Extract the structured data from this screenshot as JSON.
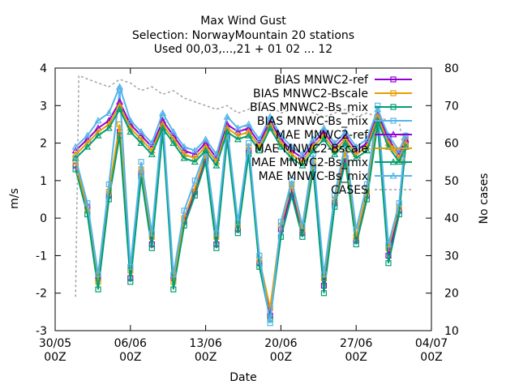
{
  "chart_data": {
    "type": "line",
    "title_lines": [
      "Max Wind Gust",
      "Selection: NorwayMountain     20 stations",
      "Used 00,03,...,21 + 01 02 ... 12"
    ],
    "xlabel": "Date",
    "ylabel": "m/s",
    "y2label": "No cases",
    "ylim": [
      -3,
      4
    ],
    "y2lim": [
      10,
      80
    ],
    "xlim": [
      0,
      35
    ],
    "x_unit": "days since 30/05 00Z",
    "yticks": [
      "-3",
      "-2",
      "-1",
      "0",
      "1",
      "2",
      "3",
      "4"
    ],
    "y2ticks": [
      "10",
      "20",
      "30",
      "40",
      "50",
      "60",
      "70",
      "80"
    ],
    "xticks": [
      {
        "l1": "30/05",
        "l2": "00Z"
      },
      {
        "l1": "06/06",
        "l2": "00Z"
      },
      {
        "l1": "13/06",
        "l2": "00Z"
      },
      {
        "l1": "20/06",
        "l2": "00Z"
      },
      {
        "l1": "27/06",
        "l2": "00Z"
      },
      {
        "l1": "04/07",
        "l2": "00Z"
      }
    ],
    "grid": false,
    "legend_position": "top-right",
    "series": [
      {
        "name": "BIAS MNWC2-ref",
        "color": "#9400d3",
        "kind": "bias",
        "marker": "square",
        "values": [
          [
            1.9,
            1.4
          ],
          [
            3.0,
            0.3
          ],
          [
            4.0,
            -1.6
          ],
          [
            5.0,
            0.6
          ],
          [
            6.0,
            2.3
          ],
          [
            7.0,
            -1.6
          ],
          [
            8.0,
            1.2
          ],
          [
            9.0,
            -0.7
          ],
          [
            10.0,
            2.4
          ],
          [
            11.0,
            -1.6
          ],
          [
            12.0,
            -0.1
          ],
          [
            13.0,
            0.7
          ],
          [
            14.0,
            1.6
          ],
          [
            15.0,
            -0.7
          ],
          [
            16.0,
            2.2
          ],
          [
            17.0,
            -0.3
          ],
          [
            18.0,
            1.8
          ],
          [
            19.0,
            -1.2
          ],
          [
            20.0,
            -2.6
          ],
          [
            21.0,
            -0.3
          ],
          [
            22.0,
            0.7
          ],
          [
            23.0,
            -0.4
          ],
          [
            24.0,
            1.4
          ],
          [
            25.0,
            -1.8
          ],
          [
            26.0,
            0.4
          ],
          [
            27.0,
            1.6
          ],
          [
            28.0,
            -0.6
          ],
          [
            29.0,
            0.6
          ],
          [
            30.0,
            2.6
          ],
          [
            31.0,
            -1.0
          ],
          [
            32.0,
            0.2
          ],
          [
            32.6,
            2.0
          ]
        ]
      },
      {
        "name": "BIAS MNWC2-Bscale",
        "color": "#e69f00",
        "kind": "bias",
        "marker": "square",
        "values": [
          [
            1.9,
            1.5
          ],
          [
            3.0,
            0.2
          ],
          [
            4.0,
            -1.7
          ],
          [
            5.0,
            0.7
          ],
          [
            6.0,
            2.5
          ],
          [
            7.0,
            -1.4
          ],
          [
            8.0,
            1.3
          ],
          [
            9.0,
            -0.5
          ],
          [
            10.0,
            2.5
          ],
          [
            11.0,
            -1.7
          ],
          [
            12.0,
            0.0
          ],
          [
            13.0,
            0.8
          ],
          [
            14.0,
            1.7
          ],
          [
            15.0,
            -0.5
          ],
          [
            16.0,
            2.3
          ],
          [
            17.0,
            -0.2
          ],
          [
            18.0,
            1.9
          ],
          [
            19.0,
            -1.1
          ],
          [
            20.0,
            -2.4
          ],
          [
            21.0,
            -0.2
          ],
          [
            22.0,
            0.9
          ],
          [
            23.0,
            -0.3
          ],
          [
            24.0,
            1.5
          ],
          [
            25.0,
            -1.6
          ],
          [
            26.0,
            0.5
          ],
          [
            27.0,
            1.8
          ],
          [
            28.0,
            -0.5
          ],
          [
            29.0,
            0.7
          ],
          [
            30.0,
            2.7
          ],
          [
            31.0,
            -0.8
          ],
          [
            32.0,
            0.3
          ],
          [
            32.6,
            2.1
          ]
        ]
      },
      {
        "name": "BIAS MNWC2-Bs_mix",
        "color": "#009e73",
        "kind": "bias",
        "marker": "square",
        "values": [
          [
            1.9,
            1.3
          ],
          [
            3.0,
            0.1
          ],
          [
            4.0,
            -1.9
          ],
          [
            5.0,
            0.5
          ],
          [
            6.0,
            2.2
          ],
          [
            7.0,
            -1.7
          ],
          [
            8.0,
            1.1
          ],
          [
            9.0,
            -0.8
          ],
          [
            10.0,
            2.3
          ],
          [
            11.0,
            -1.9
          ],
          [
            12.0,
            -0.2
          ],
          [
            13.0,
            0.6
          ],
          [
            14.0,
            1.5
          ],
          [
            15.0,
            -0.8
          ],
          [
            16.0,
            2.1
          ],
          [
            17.0,
            -0.4
          ],
          [
            18.0,
            1.7
          ],
          [
            19.0,
            -1.3
          ],
          [
            20.0,
            -2.7
          ],
          [
            21.0,
            -0.5
          ],
          [
            22.0,
            0.6
          ],
          [
            23.0,
            -0.5
          ],
          [
            24.0,
            1.3
          ],
          [
            25.0,
            -2.0
          ],
          [
            26.0,
            0.3
          ],
          [
            27.0,
            1.5
          ],
          [
            28.0,
            -0.7
          ],
          [
            29.0,
            0.5
          ],
          [
            30.0,
            2.5
          ],
          [
            31.0,
            -1.2
          ],
          [
            32.0,
            0.1
          ],
          [
            32.6,
            1.9
          ]
        ]
      },
      {
        "name": "BIAS MNWC-Bs_mix",
        "color": "#56b4e9",
        "kind": "bias",
        "marker": "square",
        "values": [
          [
            1.9,
            1.6
          ],
          [
            3.0,
            0.4
          ],
          [
            4.0,
            -1.5
          ],
          [
            5.0,
            0.9
          ],
          [
            6.0,
            3.4
          ],
          [
            7.0,
            -1.3
          ],
          [
            8.0,
            1.5
          ],
          [
            9.0,
            -0.4
          ],
          [
            10.0,
            2.7
          ],
          [
            11.0,
            -1.5
          ],
          [
            12.0,
            0.2
          ],
          [
            13.0,
            1.0
          ],
          [
            14.0,
            1.8
          ],
          [
            15.0,
            -0.4
          ],
          [
            16.0,
            2.4
          ],
          [
            17.0,
            -0.1
          ],
          [
            18.0,
            2.0
          ],
          [
            19.0,
            -1.0
          ],
          [
            20.0,
            -2.8
          ],
          [
            21.0,
            -0.1
          ],
          [
            22.0,
            1.0
          ],
          [
            23.0,
            -0.2
          ],
          [
            24.0,
            1.7
          ],
          [
            25.0,
            -1.5
          ],
          [
            26.0,
            0.6
          ],
          [
            27.0,
            2.0
          ],
          [
            28.0,
            -0.3
          ],
          [
            29.0,
            0.9
          ],
          [
            30.0,
            3.0
          ],
          [
            31.0,
            -0.7
          ],
          [
            32.0,
            0.4
          ],
          [
            32.6,
            2.2
          ]
        ]
      },
      {
        "name": "MAE MNWC2-ref",
        "color": "#9400d3",
        "kind": "mae",
        "marker": "triangle",
        "values": [
          [
            1.9,
            1.8
          ],
          [
            3.0,
            2.1
          ],
          [
            4.0,
            2.4
          ],
          [
            5.0,
            2.6
          ],
          [
            6.0,
            3.1
          ],
          [
            7.0,
            2.5
          ],
          [
            8.0,
            2.2
          ],
          [
            9.0,
            1.9
          ],
          [
            10.0,
            2.6
          ],
          [
            11.0,
            2.2
          ],
          [
            12.0,
            1.8
          ],
          [
            13.0,
            1.7
          ],
          [
            14.0,
            2.0
          ],
          [
            15.0,
            1.6
          ],
          [
            16.0,
            2.5
          ],
          [
            17.0,
            2.3
          ],
          [
            18.0,
            2.4
          ],
          [
            19.0,
            2.0
          ],
          [
            20.0,
            2.6
          ],
          [
            21.0,
            2.1
          ],
          [
            22.0,
            1.8
          ],
          [
            23.0,
            1.6
          ],
          [
            24.0,
            2.0
          ],
          [
            25.0,
            2.3
          ],
          [
            26.0,
            1.9
          ],
          [
            27.0,
            2.2
          ],
          [
            28.0,
            1.8
          ],
          [
            29.0,
            2.0
          ],
          [
            30.0,
            2.8
          ],
          [
            31.0,
            2.1
          ],
          [
            32.0,
            1.7
          ],
          [
            32.6,
            2.1
          ]
        ]
      },
      {
        "name": "MAE MNWC2-Bscale",
        "color": "#e69f00",
        "kind": "mae",
        "marker": "triangle",
        "values": [
          [
            1.9,
            1.7
          ],
          [
            3.0,
            2.0
          ],
          [
            4.0,
            2.3
          ],
          [
            5.0,
            2.5
          ],
          [
            6.0,
            3.0
          ],
          [
            7.0,
            2.4
          ],
          [
            8.0,
            2.1
          ],
          [
            9.0,
            1.8
          ],
          [
            10.0,
            2.5
          ],
          [
            11.0,
            2.1
          ],
          [
            12.0,
            1.7
          ],
          [
            13.0,
            1.6
          ],
          [
            14.0,
            1.9
          ],
          [
            15.0,
            1.5
          ],
          [
            16.0,
            2.4
          ],
          [
            17.0,
            2.2
          ],
          [
            18.0,
            2.3
          ],
          [
            19.0,
            1.9
          ],
          [
            20.0,
            2.5
          ],
          [
            21.0,
            2.0
          ],
          [
            22.0,
            1.7
          ],
          [
            23.0,
            1.5
          ],
          [
            24.0,
            1.9
          ],
          [
            25.0,
            2.2
          ],
          [
            26.0,
            1.8
          ],
          [
            27.0,
            2.1
          ],
          [
            28.0,
            1.7
          ],
          [
            29.0,
            1.9
          ],
          [
            30.0,
            2.7
          ],
          [
            31.0,
            2.0
          ],
          [
            32.0,
            1.6
          ],
          [
            32.6,
            2.0
          ]
        ]
      },
      {
        "name": "MAE MNWC2-Bs_mix",
        "color": "#009e73",
        "kind": "mae",
        "marker": "triangle",
        "values": [
          [
            1.9,
            1.6
          ],
          [
            3.0,
            1.9
          ],
          [
            4.0,
            2.2
          ],
          [
            5.0,
            2.4
          ],
          [
            6.0,
            2.9
          ],
          [
            7.0,
            2.3
          ],
          [
            8.0,
            2.0
          ],
          [
            9.0,
            1.7
          ],
          [
            10.0,
            2.4
          ],
          [
            11.0,
            2.0
          ],
          [
            12.0,
            1.6
          ],
          [
            13.0,
            1.5
          ],
          [
            14.0,
            1.8
          ],
          [
            15.0,
            1.4
          ],
          [
            16.0,
            2.3
          ],
          [
            17.0,
            2.1
          ],
          [
            18.0,
            2.2
          ],
          [
            19.0,
            1.8
          ],
          [
            20.0,
            2.4
          ],
          [
            21.0,
            1.9
          ],
          [
            22.0,
            1.6
          ],
          [
            23.0,
            1.4
          ],
          [
            24.0,
            1.8
          ],
          [
            25.0,
            2.1
          ],
          [
            26.0,
            1.7
          ],
          [
            27.0,
            2.0
          ],
          [
            28.0,
            1.6
          ],
          [
            29.0,
            1.8
          ],
          [
            30.0,
            2.6
          ],
          [
            31.0,
            1.9
          ],
          [
            32.0,
            1.5
          ],
          [
            32.6,
            1.9
          ]
        ]
      },
      {
        "name": "MAE MNWC-Bs_mix",
        "color": "#56b4e9",
        "kind": "mae",
        "marker": "triangle",
        "values": [
          [
            1.9,
            1.9
          ],
          [
            3.0,
            2.2
          ],
          [
            4.0,
            2.6
          ],
          [
            5.0,
            2.8
          ],
          [
            6.0,
            3.5
          ],
          [
            7.0,
            2.6
          ],
          [
            8.0,
            2.3
          ],
          [
            9.0,
            2.0
          ],
          [
            10.0,
            2.8
          ],
          [
            11.0,
            2.3
          ],
          [
            12.0,
            1.9
          ],
          [
            13.0,
            1.8
          ],
          [
            14.0,
            2.1
          ],
          [
            15.0,
            1.7
          ],
          [
            16.0,
            2.7
          ],
          [
            17.0,
            2.4
          ],
          [
            18.0,
            2.5
          ],
          [
            19.0,
            2.1
          ],
          [
            20.0,
            2.7
          ],
          [
            21.0,
            2.2
          ],
          [
            22.0,
            1.9
          ],
          [
            23.0,
            1.7
          ],
          [
            24.0,
            2.1
          ],
          [
            25.0,
            2.4
          ],
          [
            26.0,
            2.0
          ],
          [
            27.0,
            2.3
          ],
          [
            28.0,
            1.9
          ],
          [
            29.0,
            2.1
          ],
          [
            30.0,
            2.9
          ],
          [
            31.0,
            2.2
          ],
          [
            32.0,
            1.8
          ],
          [
            32.6,
            2.2
          ]
        ]
      },
      {
        "name": "CASES",
        "color": "#a0a0a0",
        "kind": "cases",
        "axis": "y2",
        "values": [
          [
            1.9,
            19
          ],
          [
            2.2,
            78
          ],
          [
            4.0,
            76
          ],
          [
            5.0,
            75
          ],
          [
            6.0,
            77
          ],
          [
            7.0,
            76
          ],
          [
            8.0,
            74
          ],
          [
            9.0,
            75
          ],
          [
            10.0,
            73
          ],
          [
            11.0,
            74
          ],
          [
            12.0,
            72
          ],
          [
            13.0,
            71
          ],
          [
            14.0,
            70
          ],
          [
            15.0,
            69
          ],
          [
            16.0,
            70
          ],
          [
            17.0,
            68
          ],
          [
            18.0,
            69
          ],
          [
            19.0,
            71
          ],
          [
            20.0,
            70
          ],
          [
            21.0,
            68
          ],
          [
            22.0,
            69
          ],
          [
            23.0,
            70
          ],
          [
            24.0,
            68
          ],
          [
            25.0,
            67
          ],
          [
            26.0,
            68
          ],
          [
            27.0,
            69
          ],
          [
            28.0,
            67
          ],
          [
            29.0,
            68
          ],
          [
            30.0,
            67
          ],
          [
            31.0,
            66
          ],
          [
            32.0,
            66
          ],
          [
            32.6,
            54
          ]
        ]
      }
    ]
  }
}
